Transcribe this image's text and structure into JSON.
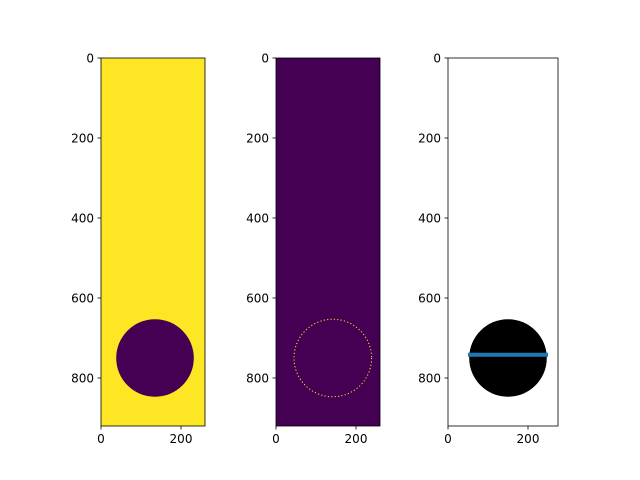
{
  "chart_data": [
    {
      "type": "heatmap",
      "panel": "binary-mask",
      "xlim": [
        0,
        260
      ],
      "ylim": [
        920,
        0
      ],
      "xticks": [
        0,
        200
      ],
      "yticks": [
        0,
        200,
        400,
        600,
        800
      ],
      "background_color": "#fde725",
      "circle": {
        "cx": 135,
        "cy": 750,
        "r": 97,
        "fill": "#440154"
      }
    },
    {
      "type": "heatmap",
      "panel": "circle-edge",
      "xlim": [
        0,
        260
      ],
      "ylim": [
        920,
        0
      ],
      "xticks": [
        0,
        200
      ],
      "yticks": [
        0,
        200,
        400,
        600,
        800
      ],
      "background_color": "#440154",
      "circle": {
        "cx": 142,
        "cy": 750,
        "r": 97,
        "outline": "#fde725"
      }
    },
    {
      "type": "line",
      "panel": "filled-circle-with-line",
      "xlim": [
        0,
        275
      ],
      "ylim": [
        920,
        0
      ],
      "xticks": [
        0,
        200
      ],
      "yticks": [
        0,
        200,
        400,
        600,
        800
      ],
      "background_color": "#ffffff",
      "circle": {
        "cx": 150,
        "cy": 750,
        "r": 97,
        "fill": "#000000"
      },
      "series": [
        {
          "x": [
            50,
            250
          ],
          "y": [
            742,
            742
          ],
          "color": "#1f77b4"
        }
      ]
    }
  ]
}
